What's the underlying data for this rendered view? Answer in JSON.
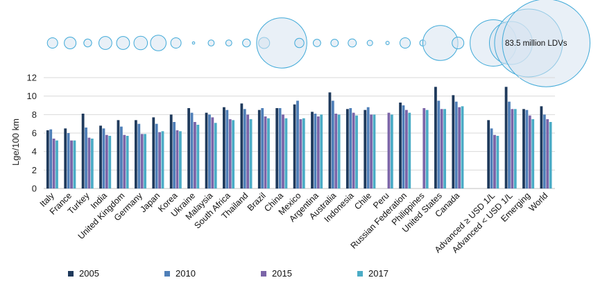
{
  "chart_data": {
    "type": "bar",
    "title": "",
    "ylabel": "Lge/100 km",
    "xlabel": "",
    "ylim": [
      0,
      12
    ],
    "yticks": [
      0,
      2,
      4,
      6,
      8,
      10,
      12
    ],
    "grid": true,
    "legend_position": "bottom",
    "bubble_annotation": "83.5 million LDVs",
    "categories": [
      "Italy",
      "France",
      "Turkey",
      "India",
      "United Kingdom",
      "Germany",
      "Japan",
      "Korea",
      "Ukraine",
      "Malaysia",
      "South Africa",
      "Thailand",
      "Brazil",
      "China",
      "Mexico",
      "Argentina",
      "Australia",
      "Indonesia",
      "Chile",
      "Peru",
      "Russian Federation",
      "Philippines",
      "United States",
      "Canada",
      "",
      "Advanced ≥ USD 1/L",
      "Advanced < USD 1/L",
      "Emerging",
      "World"
    ],
    "bubble_sizes": [
      3.5,
      4.5,
      2.0,
      5.5,
      5.5,
      6.0,
      8.0,
      3.5,
      0.2,
      1.2,
      1.2,
      2.0,
      4.0,
      82,
      2.8,
      1.8,
      1.8,
      2.2,
      1.0,
      0.4,
      3.5,
      1.2,
      40,
      4.5,
      null,
      70,
      60,
      150,
      250
    ],
    "series": [
      {
        "name": "2005",
        "color": "#1f3a5c",
        "values": [
          6.3,
          6.5,
          8.1,
          6.8,
          7.4,
          7.4,
          7.7,
          8.0,
          8.7,
          8.2,
          8.8,
          9.2,
          8.5,
          8.7,
          9.1,
          8.3,
          10.4,
          8.6,
          8.5,
          null,
          9.3,
          null,
          11.0,
          10.1,
          null,
          7.4,
          11.0,
          8.6,
          8.9
        ]
      },
      {
        "name": "2010",
        "color": "#4f7fb8",
        "values": [
          6.4,
          6.0,
          6.6,
          6.5,
          6.7,
          7.0,
          7.0,
          7.2,
          8.2,
          8.0,
          8.5,
          8.6,
          8.7,
          8.7,
          9.5,
          8.1,
          9.5,
          8.7,
          8.8,
          null,
          9.0,
          null,
          9.5,
          9.4,
          null,
          6.5,
          9.4,
          8.5,
          8.0
        ]
      },
      {
        "name": "2015",
        "color": "#7b65a8",
        "values": [
          5.4,
          5.2,
          5.5,
          5.8,
          5.8,
          5.9,
          6.1,
          6.3,
          7.2,
          7.7,
          7.5,
          8.0,
          7.8,
          8.0,
          7.5,
          7.8,
          8.1,
          8.2,
          8.0,
          8.2,
          8.5,
          8.7,
          8.6,
          8.8,
          null,
          5.8,
          8.6,
          7.9,
          7.5
        ]
      },
      {
        "name": "2017",
        "color": "#4bacc6",
        "values": [
          5.2,
          5.2,
          5.4,
          5.7,
          5.7,
          5.9,
          6.2,
          6.2,
          6.9,
          7.1,
          7.4,
          7.5,
          7.6,
          7.6,
          7.6,
          8.0,
          8.0,
          7.9,
          8.0,
          8.0,
          8.2,
          8.5,
          8.6,
          8.9,
          null,
          5.7,
          8.6,
          7.5,
          7.2
        ]
      }
    ]
  }
}
